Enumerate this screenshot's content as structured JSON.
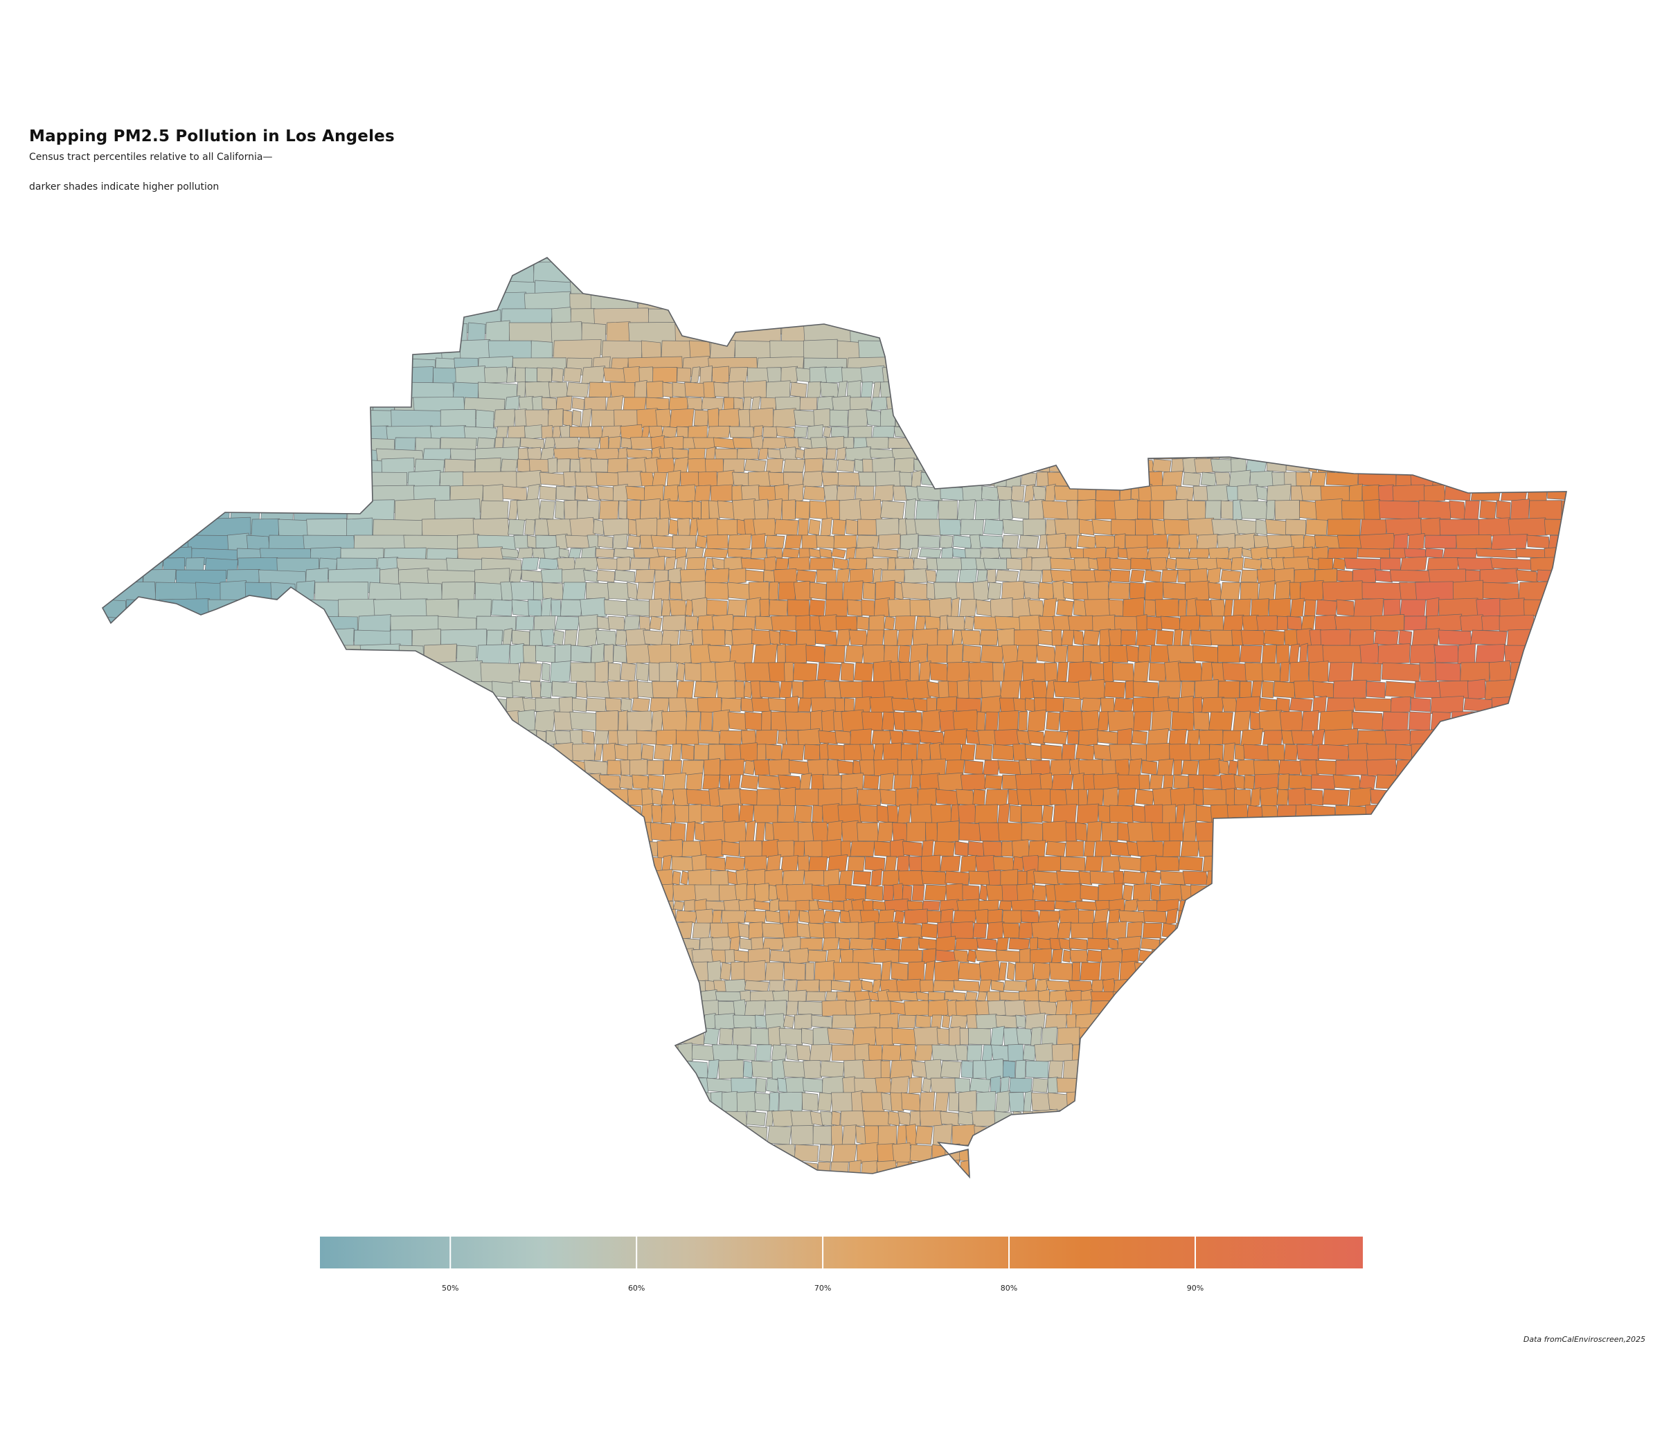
{
  "title": "Mapping PM2.5 Pollution in Los Angeles",
  "subtitle_line1": "Census tract percentiles relative to all California—",
  "subtitle_line2": "darker shades indicate higher pollution",
  "caption": "Data fromCalEnviroscreen,2025",
  "legend": {
    "ticks": [
      {
        "value": 50,
        "label": "50%"
      },
      {
        "value": 60,
        "label": "60%"
      },
      {
        "value": 70,
        "label": "70%"
      },
      {
        "value": 80,
        "label": "80%"
      },
      {
        "value": 90,
        "label": "90%"
      }
    ],
    "range": [
      43,
      99
    ],
    "stops": [
      {
        "value": 43,
        "color": "#7aaab6"
      },
      {
        "value": 55,
        "color": "#b3c9c3"
      },
      {
        "value": 63,
        "color": "#cdbda0"
      },
      {
        "value": 72,
        "color": "#e0a566"
      },
      {
        "value": 84,
        "color": "#e0823a"
      },
      {
        "value": 99,
        "color": "#e16a55"
      }
    ]
  },
  "colors": {
    "boundary": "#5c5f63",
    "low": "#7aaab6",
    "high": "#e16a55"
  }
}
